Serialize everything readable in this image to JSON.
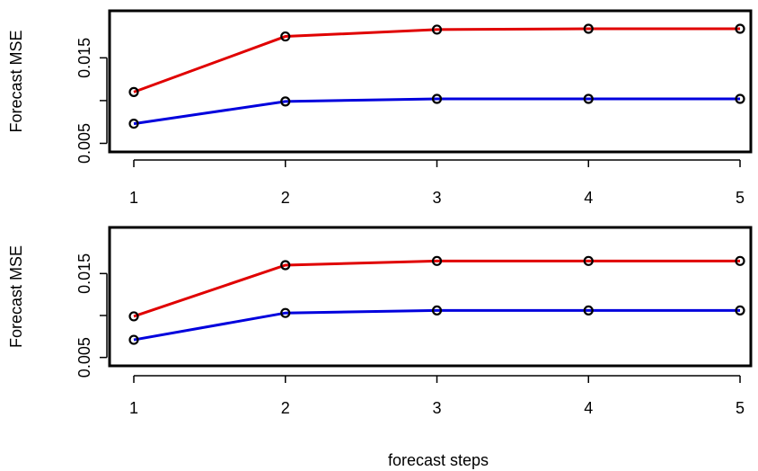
{
  "chart_data": [
    {
      "type": "line",
      "ylabel": "Forecast MSE",
      "x": [
        1,
        2,
        3,
        4,
        5
      ],
      "xticks": [
        "1",
        "2",
        "3",
        "4",
        "5"
      ],
      "yticks": [
        "0.005",
        "0.015"
      ],
      "ylim": [
        0.004,
        0.0205
      ],
      "grid": false,
      "series": [
        {
          "color": "#e00000",
          "values": [
            0.011,
            0.0175,
            0.0183,
            0.0184,
            0.0184
          ]
        },
        {
          "color": "#0000dd",
          "values": [
            0.0073,
            0.0099,
            0.0102,
            0.0102,
            0.0102
          ]
        }
      ]
    },
    {
      "type": "line",
      "ylabel": "Forecast MSE",
      "xlabel": "forecast steps",
      "x": [
        1,
        2,
        3,
        4,
        5
      ],
      "xticks": [
        "1",
        "2",
        "3",
        "4",
        "5"
      ],
      "yticks": [
        "0.005",
        "0.015"
      ],
      "ylim": [
        0.004,
        0.0205
      ],
      "grid": false,
      "series": [
        {
          "color": "#e00000",
          "values": [
            0.0099,
            0.016,
            0.0165,
            0.0165,
            0.0165
          ]
        },
        {
          "color": "#0000dd",
          "values": [
            0.0071,
            0.0103,
            0.0106,
            0.0106,
            0.0106
          ]
        }
      ]
    }
  ]
}
